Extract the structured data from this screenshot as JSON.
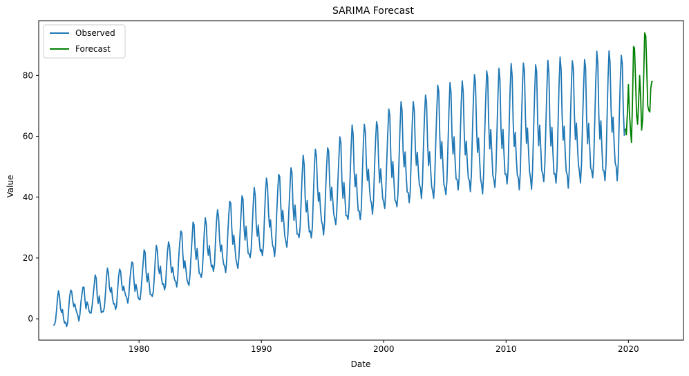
{
  "chart_data": {
    "type": "line",
    "title": "SARIMA Forecast",
    "xlabel": "Date",
    "ylabel": "Value",
    "xlim": [
      1971.8,
      2024.5
    ],
    "ylim": [
      -7,
      98
    ],
    "xticks": [
      1980,
      1990,
      2000,
      2010,
      2020
    ],
    "yticks": [
      0,
      20,
      40,
      60,
      80
    ],
    "grid": false,
    "legend_position": "top-left",
    "series": [
      {
        "name": "Observed",
        "color": "#1f77b4",
        "start": 1973.0,
        "end": 2019.67,
        "trend_points": [
          [
            1973.0,
            1.5
          ],
          [
            1980.0,
            12.5
          ],
          [
            1990.0,
            31.0
          ],
          [
            1997.0,
            45.0
          ],
          [
            2002.0,
            53.0
          ],
          [
            2005.0,
            57.0
          ],
          [
            2010.0,
            61.0
          ],
          [
            2015.0,
            62.5
          ],
          [
            2019.67,
            65.0
          ]
        ],
        "amplitude_points": [
          [
            1973.0,
            3.5
          ],
          [
            1980.0,
            5.0
          ],
          [
            1990.0,
            8.5
          ],
          [
            2000.0,
            11.0
          ],
          [
            2005.0,
            12.5
          ],
          [
            2010.0,
            14.0
          ],
          [
            2019.67,
            14.5
          ]
        ]
      },
      {
        "name": "Forecast",
        "color": "#008000",
        "x": [
          2019.75,
          2019.83,
          2019.92,
          2020.0,
          2020.08,
          2020.17,
          2020.25,
          2020.33,
          2020.42,
          2020.5,
          2020.58,
          2020.67,
          2020.75,
          2020.83,
          2020.92,
          2021.0,
          2021.08,
          2021.17,
          2021.25,
          2021.33,
          2021.42,
          2021.5,
          2021.58,
          2021.67,
          2021.75,
          2021.83,
          2021.92,
          2022.0
        ],
        "values": [
          62.5,
          60.5,
          68.0,
          77.0,
          68.0,
          62.0,
          58.0,
          71.0,
          89.5,
          89.0,
          79.0,
          67.0,
          64.0,
          71.0,
          80.0,
          73.0,
          62.0,
          66.0,
          80.0,
          94.0,
          93.0,
          82.0,
          70.0,
          68.5,
          68.0,
          76.0,
          78.0,
          78.0
        ]
      }
    ]
  }
}
